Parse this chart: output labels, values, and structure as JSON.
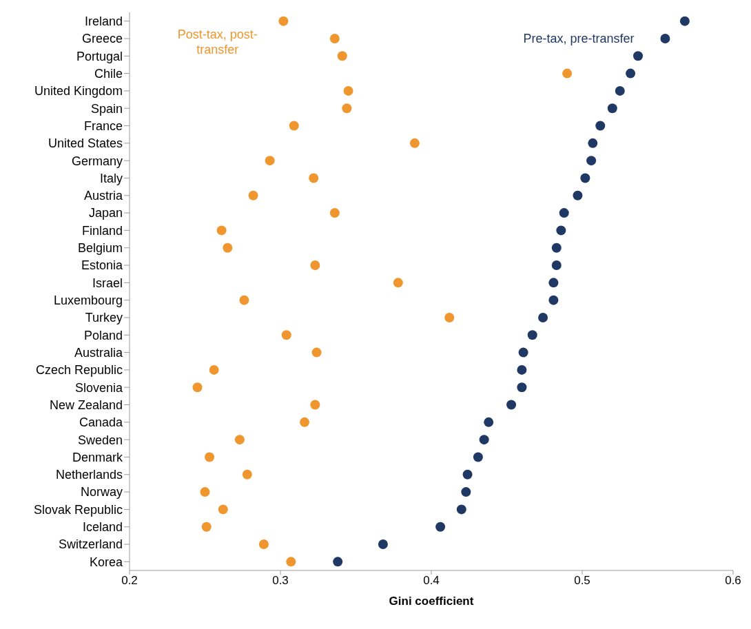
{
  "chart_data": {
    "type": "scatter",
    "orientation": "horizontal",
    "xlabel": "Gini coefficient",
    "categories": [
      "Ireland",
      "Greece",
      "Portugal",
      "Chile",
      "United Kingdom",
      "Spain",
      "France",
      "United States",
      "Germany",
      "Italy",
      "Austria",
      "Japan",
      "Finland",
      "Belgium",
      "Estonia",
      "Israel",
      "Luxembourg",
      "Turkey",
      "Poland",
      "Australia",
      "Czech Republic",
      "Slovenia",
      "New Zealand",
      "Canada",
      "Sweden",
      "Denmark",
      "Netherlands",
      "Norway",
      "Slovak Republic",
      "Iceland",
      "Switzerland",
      "Korea"
    ],
    "series": [
      {
        "name": "Post-tax, post-transfer",
        "color": "#f0962e",
        "values": [
          0.302,
          0.336,
          0.341,
          0.49,
          0.345,
          0.344,
          0.309,
          0.389,
          0.293,
          0.322,
          0.282,
          0.336,
          0.261,
          0.265,
          0.323,
          0.378,
          0.276,
          0.412,
          0.304,
          0.324,
          0.256,
          0.245,
          0.323,
          0.316,
          0.273,
          0.253,
          0.278,
          0.25,
          0.262,
          0.251,
          0.289,
          0.307
        ]
      },
      {
        "name": "Pre-tax, pre-transfer",
        "color": "#203864",
        "values": [
          0.568,
          0.555,
          0.537,
          0.532,
          0.525,
          0.52,
          0.512,
          0.507,
          0.506,
          0.502,
          0.497,
          0.488,
          0.486,
          0.483,
          0.483,
          0.481,
          0.481,
          0.474,
          0.467,
          0.461,
          0.46,
          0.46,
          0.453,
          0.438,
          0.435,
          0.431,
          0.424,
          0.423,
          0.42,
          0.406,
          0.368,
          0.338
        ]
      }
    ],
    "xlim": [
      0.2,
      0.6
    ],
    "xticks": [
      0.2,
      0.3,
      0.4,
      0.5,
      0.6
    ],
    "grid": false,
    "marker": "circle"
  }
}
